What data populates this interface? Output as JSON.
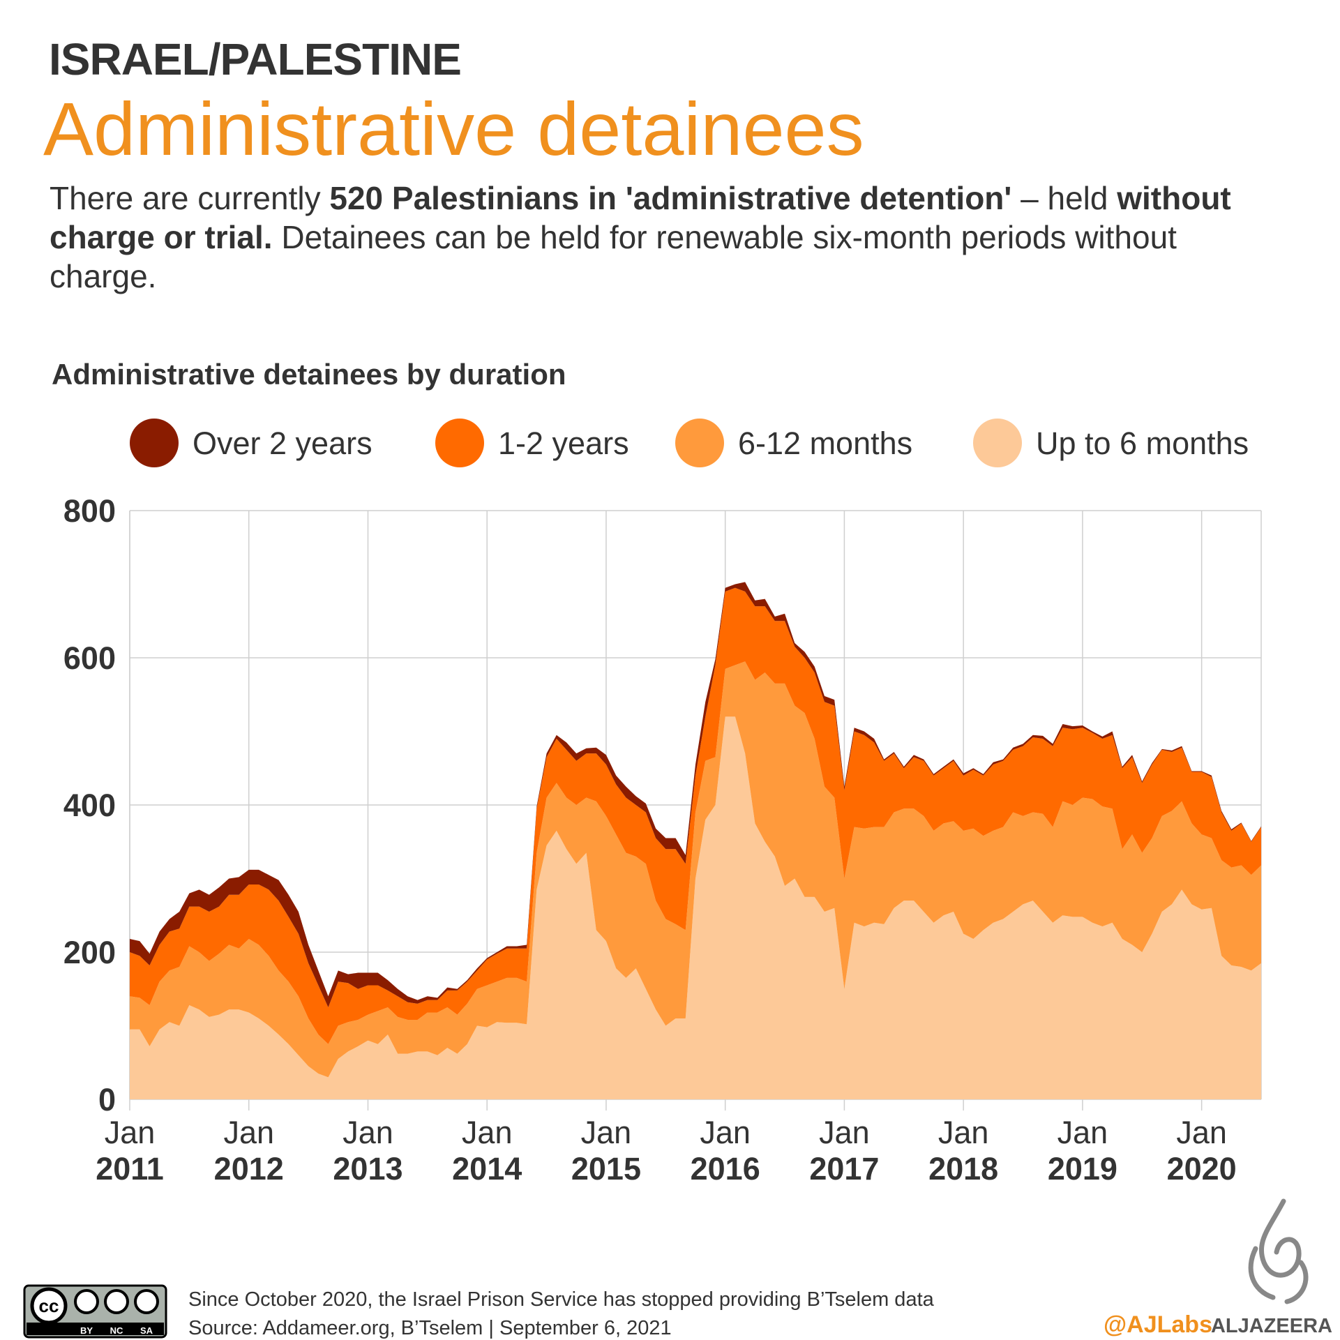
{
  "header": {
    "kicker": "ISRAEL/PALESTINE",
    "title": "Administrative detainees",
    "description": [
      {
        "text": "There are currently ",
        "bold": false
      },
      {
        "text": "520 Palestinians in 'administrative detention'",
        "bold": true
      },
      {
        "text": " – held ",
        "bold": false
      },
      {
        "text": "without charge or trial.",
        "bold": true
      },
      {
        "text": " Detainees can be held for renewable six-month periods without charge.",
        "bold": false
      }
    ]
  },
  "chart_data": {
    "type": "area",
    "stacked": true,
    "title": "Administrative detainees by duration",
    "categories": [
      "Jan 2011",
      null,
      null,
      null,
      null,
      null,
      null,
      null,
      null,
      null,
      null,
      null,
      "Jan 2012",
      null,
      null,
      null,
      null,
      null,
      null,
      null,
      null,
      null,
      null,
      null,
      "Jan 2013",
      null,
      null,
      null,
      null,
      null,
      null,
      null,
      null,
      null,
      null,
      null,
      "Jan 2014",
      null,
      null,
      null,
      null,
      null,
      null,
      null,
      null,
      null,
      null,
      null,
      "Jan 2015",
      null,
      null,
      null,
      null,
      null,
      null,
      null,
      null,
      null,
      null,
      null,
      "Jan 2016",
      null,
      null,
      null,
      null,
      null,
      null,
      null,
      null,
      null,
      null,
      null,
      "Jan 2017",
      null,
      null,
      null,
      null,
      null,
      null,
      null,
      null,
      null,
      null,
      null,
      "Jan 2018",
      null,
      null,
      null,
      null,
      null,
      null,
      null,
      null,
      null,
      null,
      null,
      "Jan 2019",
      null,
      null,
      null,
      null,
      null,
      null,
      null,
      null,
      null,
      null,
      null,
      "Jan 2020",
      null,
      null,
      null,
      null,
      null,
      null
    ],
    "series": [
      {
        "name": "Over 2 years",
        "color": "#8a1c00",
        "values": [
          18,
          20,
          16,
          18,
          17,
          23,
          18,
          23,
          23,
          26,
          22,
          24,
          20,
          20,
          20,
          28,
          30,
          30,
          25,
          20,
          15,
          15,
          12,
          22,
          17,
          17,
          14,
          10,
          8,
          5,
          5,
          3,
          4,
          2,
          2,
          3,
          2,
          2,
          3,
          3,
          5,
          3,
          5,
          5,
          10,
          10,
          7,
          8,
          13,
          12,
          15,
          12,
          12,
          13,
          15,
          15,
          12,
          15,
          20,
          8,
          5,
          5,
          13,
          8,
          10,
          6,
          10,
          5,
          8,
          8,
          8,
          8,
          5,
          5,
          5,
          5,
          2,
          2,
          2,
          3,
          2,
          2,
          2,
          2,
          3,
          2,
          2,
          3,
          2,
          3,
          3,
          3,
          4,
          3,
          5,
          4,
          3,
          2,
          3,
          5,
          2,
          3,
          2,
          2,
          1,
          2,
          2,
          1,
          1,
          2,
          2,
          2,
          1,
          1,
          1
        ]
      },
      {
        "name": "1-2 years",
        "color": "#ff6a00",
        "values": [
          60,
          57,
          54,
          50,
          53,
          52,
          54,
          62,
          67,
          64,
          68,
          73,
          74,
          82,
          90,
          95,
          88,
          85,
          75,
          67,
          50,
          60,
          53,
          42,
          40,
          35,
          23,
          28,
          24,
          22,
          17,
          17,
          23,
          33,
          30,
          25,
          35,
          38,
          40,
          40,
          45,
          60,
          55,
          60,
          65,
          60,
          60,
          65,
          70,
          68,
          75,
          70,
          70,
          85,
          95,
          102,
          90,
          50,
          60,
          125,
          105,
          105,
          95,
          100,
          90,
          85,
          85,
          80,
          75,
          90,
          115,
          125,
          120,
          130,
          127,
          115,
          90,
          80,
          55,
          70,
          75,
          75,
          75,
          82,
          75,
          80,
          82,
          90,
          90,
          85,
          95,
          102,
          102,
          110,
          100,
          103,
          95,
          90,
          92,
          100,
          110,
          105,
          95,
          100,
          90,
          80,
          73,
          70,
          85,
          83,
          65,
          50,
          57,
          45,
          52
        ]
      },
      {
        "name": "6-12 months",
        "color": "#ff9a3c",
        "values": [
          45,
          43,
          56,
          65,
          70,
          80,
          80,
          78,
          76,
          83,
          88,
          83,
          100,
          100,
          95,
          87,
          85,
          80,
          65,
          53,
          45,
          45,
          40,
          36,
          35,
          45,
          37,
          50,
          46,
          43,
          53,
          58,
          55,
          53,
          55,
          50,
          57,
          55,
          61,
          61,
          58,
          50,
          65,
          65,
          70,
          80,
          75,
          175,
          170,
          182,
          170,
          152,
          170,
          148,
          145,
          128,
          120,
          90,
          80,
          65,
          65,
          70,
          125,
          195,
          230,
          235,
          275,
          235,
          250,
          215,
          170,
          150,
          150,
          130,
          133,
          130,
          132,
          130,
          125,
          125,
          130,
          125,
          125,
          123,
          140,
          150,
          128,
          125,
          125,
          135,
          120,
          120,
          133,
          130,
          155,
          152,
          162,
          168,
          163,
          155,
          122,
          150,
          135,
          130,
          130,
          127,
          120,
          110,
          102,
          95,
          130,
          133,
          138,
          130,
          133
        ]
      },
      {
        "name": "Up to 6 months",
        "color": "#fdc998",
        "values": [
          95,
          95,
          72,
          95,
          105,
          100,
          128,
          122,
          112,
          115,
          122,
          122,
          118,
          110,
          100,
          88,
          75,
          60,
          45,
          35,
          30,
          55,
          65,
          72,
          80,
          75,
          88,
          62,
          62,
          65,
          65,
          60,
          70,
          62,
          75,
          100,
          98,
          105,
          104,
          104,
          102,
          285,
          345,
          365,
          340,
          320,
          335,
          230,
          215,
          178,
          165,
          178,
          150,
          122,
          100,
          110,
          110,
          300,
          380,
          400,
          520,
          520,
          470,
          375,
          350,
          330,
          290,
          300,
          275,
          275,
          255,
          260,
          150,
          240,
          235,
          240,
          238,
          260,
          270,
          270,
          255,
          240,
          250,
          255,
          225,
          218,
          230,
          240,
          245,
          255,
          265,
          270,
          255,
          240,
          250,
          248,
          248,
          240,
          235,
          240,
          218,
          210,
          200,
          225,
          255,
          265,
          285,
          265,
          258,
          260,
          195,
          182,
          180,
          175,
          185
        ]
      }
    ],
    "ylim": [
      0,
      800
    ],
    "yticks": [
      0,
      200,
      400,
      600,
      800
    ],
    "grid": true
  },
  "footer": {
    "note": "Since October 2020, the Israel Prison Service has stopped providing B’Tselem data",
    "source": "Source: Addameer.org, B’Tselem | September 6, 2021",
    "license": [
      "cc",
      "BY",
      "NC",
      "SA"
    ],
    "handle": "@AJLabs",
    "brand": "ALJAZEERA"
  }
}
